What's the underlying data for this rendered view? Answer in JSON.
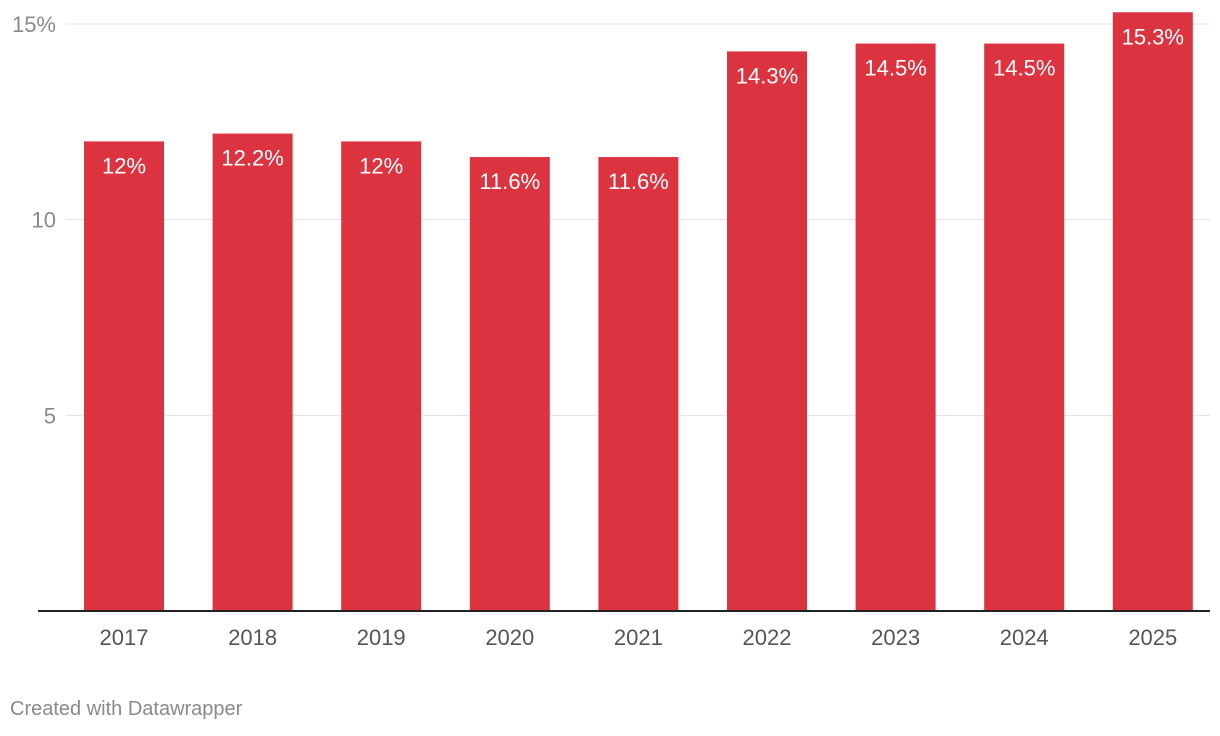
{
  "chart_data": {
    "type": "bar",
    "categories": [
      "2017",
      "2018",
      "2019",
      "2020",
      "2021",
      "2022",
      "2023",
      "2024",
      "2025"
    ],
    "values": [
      12,
      12.2,
      12,
      11.6,
      11.6,
      14.3,
      14.5,
      14.5,
      15.3
    ],
    "data_labels": [
      "12%",
      "12.2%",
      "12%",
      "11.6%",
      "11.6%",
      "14.3%",
      "14.5%",
      "14.5%",
      "15.3%"
    ],
    "yticks": [
      5,
      10,
      15
    ],
    "ytick_labels": [
      "5",
      "10",
      "15%"
    ],
    "ylim": [
      0,
      15
    ],
    "grid": true,
    "title": "",
    "xlabel": "",
    "ylabel": "",
    "bar_color": "#dc3340"
  },
  "footer": {
    "credit": "Created with Datawrapper"
  }
}
